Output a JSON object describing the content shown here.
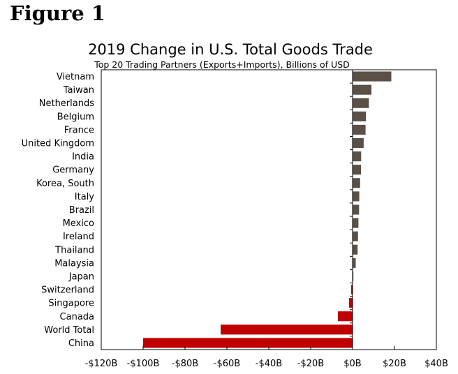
{
  "figure_label": "Figure 1",
  "colors": {
    "positive": "#5b5046",
    "negative": "#c00000",
    "axis": "#000000"
  },
  "chart_data": {
    "type": "bar",
    "orientation": "horizontal",
    "title": "2019 Change in U.S. Total Goods Trade",
    "subtitle": "Top 20 Trading Partners (Exports+Imports),  Billions of USD",
    "categories": [
      "Vietnam",
      "Taiwan",
      "Netherlands",
      "Belgium",
      "France",
      "United Kingdom",
      "India",
      "Germany",
      "Korea, South",
      "Italy",
      "Brazil",
      "Mexico",
      "Ireland",
      "Thailand",
      "Malaysia",
      "Japan",
      "Switzerland",
      "Singapore",
      "Canada",
      "World Total",
      "China"
    ],
    "values": [
      18.5,
      9.0,
      7.8,
      6.4,
      6.2,
      5.3,
      4.1,
      4.0,
      3.6,
      3.2,
      3.1,
      2.8,
      2.6,
      2.4,
      1.5,
      0.4,
      -0.7,
      -1.7,
      -7.0,
      -63.0,
      -100.0
    ],
    "xlim": [
      -120,
      40
    ],
    "xticks": [
      -120,
      -100,
      -80,
      -60,
      -40,
      -20,
      0,
      20,
      40
    ],
    "xtick_labels": [
      "-$120B",
      "-$100B",
      "-$80B",
      "-$60B",
      "-$40B",
      "-$20B",
      "$0B",
      "$20B",
      "$40B"
    ],
    "xlabel": "",
    "ylabel": ""
  }
}
